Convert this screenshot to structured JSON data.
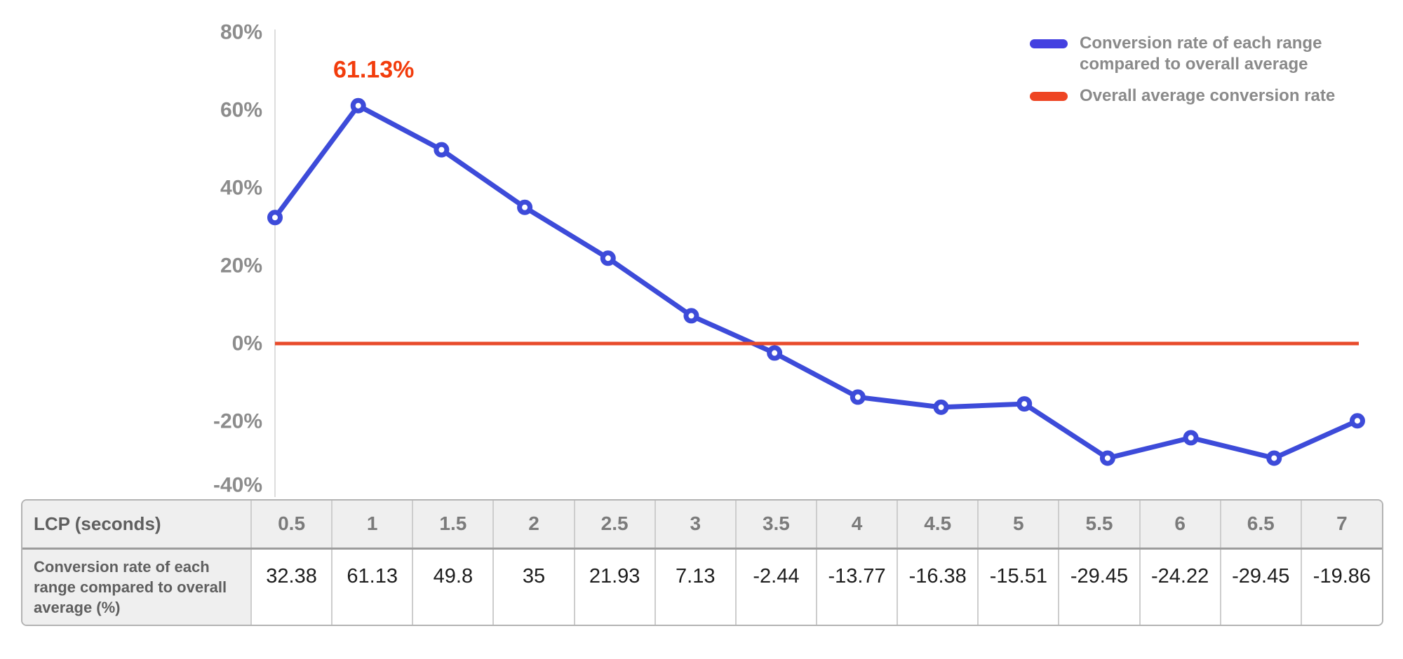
{
  "chart_data": {
    "type": "line",
    "title": "",
    "x_label": "LCP (seconds)",
    "x": [
      0.5,
      1,
      1.5,
      2,
      2.5,
      3,
      3.5,
      4,
      4.5,
      5,
      5.5,
      6,
      6.5,
      7
    ],
    "series": [
      {
        "name": "Conversion rate of each range compared to overall average",
        "type": "line",
        "color": "#3d4bd9",
        "marker": "open-circle",
        "values": [
          32.38,
          61.13,
          49.8,
          35,
          21.93,
          7.13,
          -2.44,
          -13.77,
          -16.38,
          -15.51,
          -29.45,
          -24.22,
          -29.45,
          -19.86
        ]
      },
      {
        "name": "Overall average conversion rate",
        "type": "horizontal-line",
        "color": "#e84b2b",
        "value": 0
      }
    ],
    "annotation": {
      "text": "61.13%",
      "x": 1,
      "y": 61.13,
      "color": "#f23c0c"
    },
    "y_axis": {
      "ylim": [
        -40,
        80
      ],
      "ticks": [
        80,
        60,
        40,
        20,
        0,
        -20,
        -40
      ],
      "tick_labels": [
        "80%",
        "60%",
        "40%",
        "20%",
        "0%",
        "-20%",
        "-40%"
      ],
      "unit": "%",
      "grid": false,
      "tick_color": "#8c8c8c",
      "axis_line_color": "#dddddd"
    },
    "legend_position": "top-right"
  },
  "legend": {
    "text_color": "#8a8a8a",
    "items": [
      {
        "lines": [
          "Conversion rate of each range",
          "compared to overall average"
        ],
        "color": "#4440e0"
      },
      {
        "lines": [
          "Overall average conversion rate"
        ],
        "color": "#ee4523"
      }
    ]
  },
  "table": {
    "corner_header": "LCP (seconds)",
    "row_header": "Conversion rate of each range compared to overall average (%)",
    "columns": [
      "0.5",
      "1",
      "1.5",
      "2",
      "2.5",
      "3",
      "3.5",
      "4",
      "4.5",
      "5",
      "5.5",
      "6",
      "6.5",
      "7"
    ],
    "values": [
      "32.38",
      "61.13",
      "49.8",
      "35",
      "21.93",
      "7.13",
      "-2.44",
      "-13.77",
      "-16.38",
      "-15.51",
      "-29.45",
      "-24.22",
      "-29.45",
      "-19.86"
    ]
  }
}
